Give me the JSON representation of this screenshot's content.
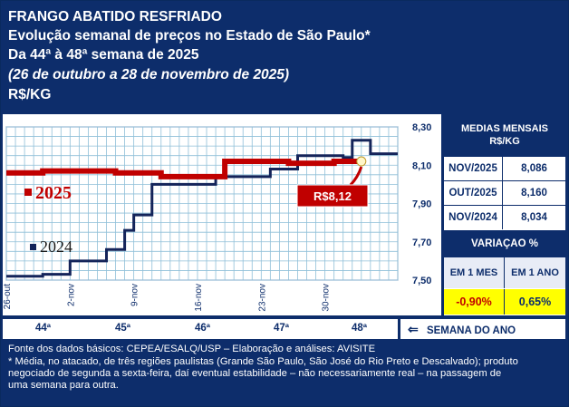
{
  "header": {
    "line1": "FRANGO ABATIDO RESFRIADO",
    "line2": "Evolução semanal de preços no Estado de São Paulo*",
    "line3": "Da 44ª à 48ª semana de 2025",
    "line4": "(26 de outubro a 28 de novembro de 2025)",
    "line5": "R$/KG"
  },
  "colors": {
    "navy": "#0d2d6b",
    "series2025": "#c00000",
    "series2024": "#14245a",
    "grid": "#8fbfd8",
    "highlight": "#ffff00"
  },
  "chart_data": {
    "type": "line",
    "x": [
      "26-out",
      "2-nov",
      "9-nov",
      "16-nov",
      "23-nov",
      "30-nov"
    ],
    "ylim": [
      7.5,
      8.3
    ],
    "yticks": [
      "7,50",
      "7,70",
      "7,90",
      "8,10",
      "8,30"
    ],
    "series": [
      {
        "name": "2025",
        "x": [
          0,
          4,
          4,
          12,
          12,
          17,
          17,
          24,
          24,
          31,
          31,
          36,
          36,
          39,
          39
        ],
        "y": [
          8.06,
          8.06,
          8.07,
          8.07,
          8.06,
          8.06,
          8.04,
          8.04,
          8.12,
          8.12,
          8.11,
          8.11,
          8.12,
          8.12,
          8.12
        ]
      },
      {
        "name": "2024",
        "x": [
          0,
          4,
          4,
          7,
          7,
          11,
          11,
          13,
          13,
          14,
          14,
          16,
          16,
          19,
          19,
          23,
          23,
          27,
          27,
          29,
          29,
          32,
          32,
          36,
          36,
          37,
          37,
          38,
          38,
          40,
          40,
          41,
          41,
          43
        ],
        "y": [
          7.52,
          7.52,
          7.53,
          7.53,
          7.6,
          7.6,
          7.66,
          7.66,
          7.76,
          7.76,
          7.84,
          7.84,
          8.0,
          8.0,
          8.0,
          8.0,
          8.04,
          8.04,
          8.04,
          8.04,
          8.08,
          8.08,
          8.15,
          8.15,
          8.15,
          8.15,
          8.14,
          8.14,
          8.23,
          8.23,
          8.16,
          8.16,
          8.16,
          8.16
        ]
      }
    ],
    "label_2025": "2025",
    "label_2024": "2024",
    "callout": "R$8,12"
  },
  "side": {
    "title_line1": "MEDIAS MENSAIS",
    "title_line2": "R$/KG",
    "rows": [
      {
        "label": "NOV/2025",
        "value": "8,086"
      },
      {
        "label": "OUT/2025",
        "value": "8,160"
      },
      {
        "label": "NOV/2024",
        "value": "8,034"
      }
    ],
    "variation_title": "VARIAÇAO %",
    "var_head_1": "EM 1 MES",
    "var_head_2": "EM 1 ANO",
    "var_val_1": "-0,90%",
    "var_val_2": "0,65%"
  },
  "weeks": [
    "44ª",
    "45ª",
    "46ª",
    "47ª",
    "48ª"
  ],
  "weeks_label": "SEMANA DO ANO",
  "weeks_arrow": "⇐",
  "footer": {
    "l1": "Fonte dos dados básicos: CEPEA/ESALQ/USP – Elaboração e análises: AVISITE",
    "l2": "* Média, no atacado, de três regiões paulistas (Grande São Paulo, São José do Rio Preto e Descalvado); produto",
    "l3": "negociado de segunda a sexta-feira, daí eventual estabilidade – não necessariamente real – na passagem de",
    "l4": "uma semana para outra."
  }
}
